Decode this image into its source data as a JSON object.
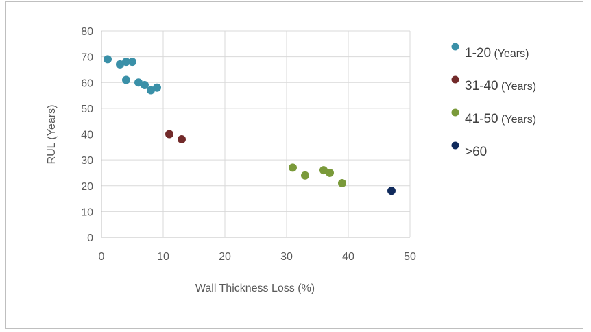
{
  "chart_data": {
    "type": "scatter",
    "title": "",
    "xlabel": "Wall Thickness Loss (%)",
    "ylabel": "RUL (Years)",
    "xlim": [
      0,
      50
    ],
    "ylim": [
      0,
      80
    ],
    "xticks": [
      0,
      10,
      20,
      30,
      40,
      50
    ],
    "yticks": [
      0,
      10,
      20,
      30,
      40,
      50,
      60,
      70,
      80
    ],
    "grid": "major gridlines on both axes",
    "legend_position": "right",
    "series": [
      {
        "name": "1-20 (Years)",
        "name_main": "1-20",
        "name_unit": " (Years)",
        "color": "#3A90A8",
        "points": [
          [
            1,
            69
          ],
          [
            3,
            67
          ],
          [
            4,
            68
          ],
          [
            5,
            68
          ],
          [
            4,
            61
          ],
          [
            6,
            60
          ],
          [
            7,
            59
          ],
          [
            8,
            57
          ],
          [
            9,
            58
          ]
        ]
      },
      {
        "name": "31-40 (Years)",
        "name_main": "31-40",
        "name_unit": " (Years)",
        "color": "#722A2A",
        "points": [
          [
            11,
            40
          ],
          [
            13,
            38
          ]
        ]
      },
      {
        "name": "41-50 (Years)",
        "name_main": "41-50",
        "name_unit": " (Years)",
        "color": "#7A9A3A",
        "points": [
          [
            31,
            27
          ],
          [
            33,
            24
          ],
          [
            36,
            26
          ],
          [
            37,
            25
          ],
          [
            39,
            21
          ]
        ]
      },
      {
        "name": ">60",
        "name_main": ">60",
        "name_unit": "",
        "color": "#102A5C",
        "points": [
          [
            47,
            18
          ]
        ]
      }
    ]
  }
}
